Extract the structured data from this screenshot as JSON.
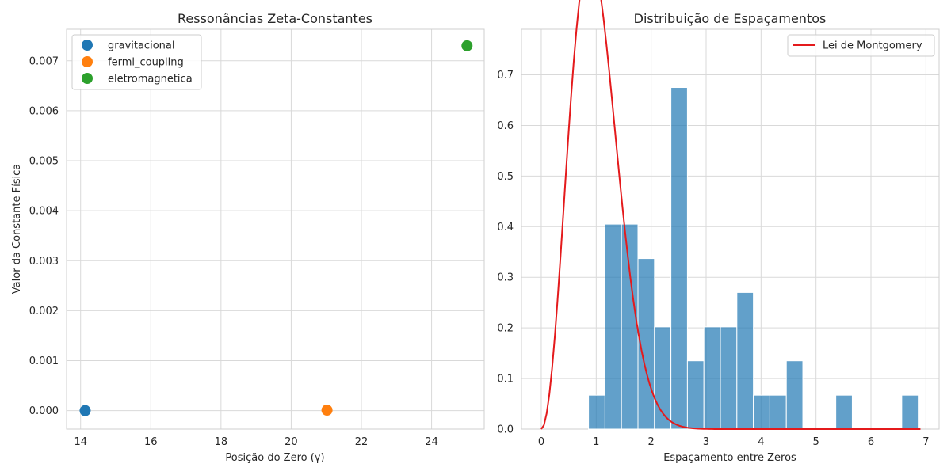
{
  "chart_data": [
    {
      "type": "scatter",
      "title": "Ressonâncias Zeta-Constantes",
      "xlabel": "Posição do Zero (γ)",
      "ylabel": "Valor da Constante Física",
      "xlim": [
        13.6,
        25.5
      ],
      "ylim": [
        -0.00037,
        0.00763
      ],
      "xticks": [
        14,
        16,
        18,
        20,
        22,
        24
      ],
      "xtick_labels": [
        "14",
        "16",
        "18",
        "20",
        "22",
        "24"
      ],
      "yticks": [
        0.0,
        0.001,
        0.002,
        0.003,
        0.004,
        0.005,
        0.006,
        0.007
      ],
      "ytick_labels": [
        "0.000",
        "0.001",
        "0.002",
        "0.003",
        "0.004",
        "0.005",
        "0.006",
        "0.007"
      ],
      "grid": true,
      "legend_position": "top-left",
      "series": [
        {
          "name": "gravitacional",
          "color": "#1f77b4",
          "points": [
            {
              "x": 14.13,
              "y": 0.0
            }
          ]
        },
        {
          "name": "fermi_coupling",
          "color": "#ff7f0e",
          "points": [
            {
              "x": 21.02,
              "y": 1e-05
            }
          ]
        },
        {
          "name": "eletromagnetica",
          "color": "#2ca02c",
          "points": [
            {
              "x": 25.01,
              "y": 0.0073
            }
          ]
        }
      ]
    },
    {
      "type": "bar",
      "subtype": "histogram",
      "title": "Distribuição de Espaçamentos",
      "xlabel": "Espaçamento entre Zeros",
      "ylabel": "",
      "xlim": [
        -0.36,
        7.24
      ],
      "ylim": [
        0,
        0.79
      ],
      "xticks": [
        0,
        1,
        2,
        3,
        4,
        5,
        6,
        7
      ],
      "xtick_labels": [
        "0",
        "1",
        "2",
        "3",
        "4",
        "5",
        "6",
        "7"
      ],
      "yticks": [
        0.0,
        0.1,
        0.2,
        0.3,
        0.4,
        0.5,
        0.6,
        0.7
      ],
      "ytick_labels": [
        "0.0",
        "0.1",
        "0.2",
        "0.3",
        "0.4",
        "0.5",
        "0.6",
        "0.7"
      ],
      "grid": true,
      "legend_position": "top-right",
      "bar_color": "#1f77b4",
      "bar_opacity": 0.7,
      "bins": [
        {
          "x0": 0.86,
          "x1": 1.16,
          "value": 0.067
        },
        {
          "x0": 1.16,
          "x1": 1.46,
          "value": 0.405
        },
        {
          "x0": 1.46,
          "x1": 1.76,
          "value": 0.405
        },
        {
          "x0": 1.76,
          "x1": 2.06,
          "value": 0.337
        },
        {
          "x0": 2.06,
          "x1": 2.36,
          "value": 0.202
        },
        {
          "x0": 2.36,
          "x1": 2.66,
          "value": 0.675
        },
        {
          "x0": 2.66,
          "x1": 2.96,
          "value": 0.135
        },
        {
          "x0": 2.96,
          "x1": 3.26,
          "value": 0.202
        },
        {
          "x0": 3.26,
          "x1": 3.56,
          "value": 0.202
        },
        {
          "x0": 3.56,
          "x1": 3.86,
          "value": 0.27
        },
        {
          "x0": 3.86,
          "x1": 4.16,
          "value": 0.067
        },
        {
          "x0": 4.16,
          "x1": 4.46,
          "value": 0.067
        },
        {
          "x0": 4.46,
          "x1": 4.76,
          "value": 0.135
        },
        {
          "x0": 5.36,
          "x1": 5.66,
          "value": 0.067
        },
        {
          "x0": 6.56,
          "x1": 6.86,
          "value": 0.067
        }
      ],
      "line": {
        "name": "Lei de Montgomery",
        "color": "#e41a1c",
        "formula": "32/pi^2 * s^2 * exp(-4 s^2 / pi)",
        "x_range": [
          0,
          6.9
        ]
      }
    }
  ]
}
